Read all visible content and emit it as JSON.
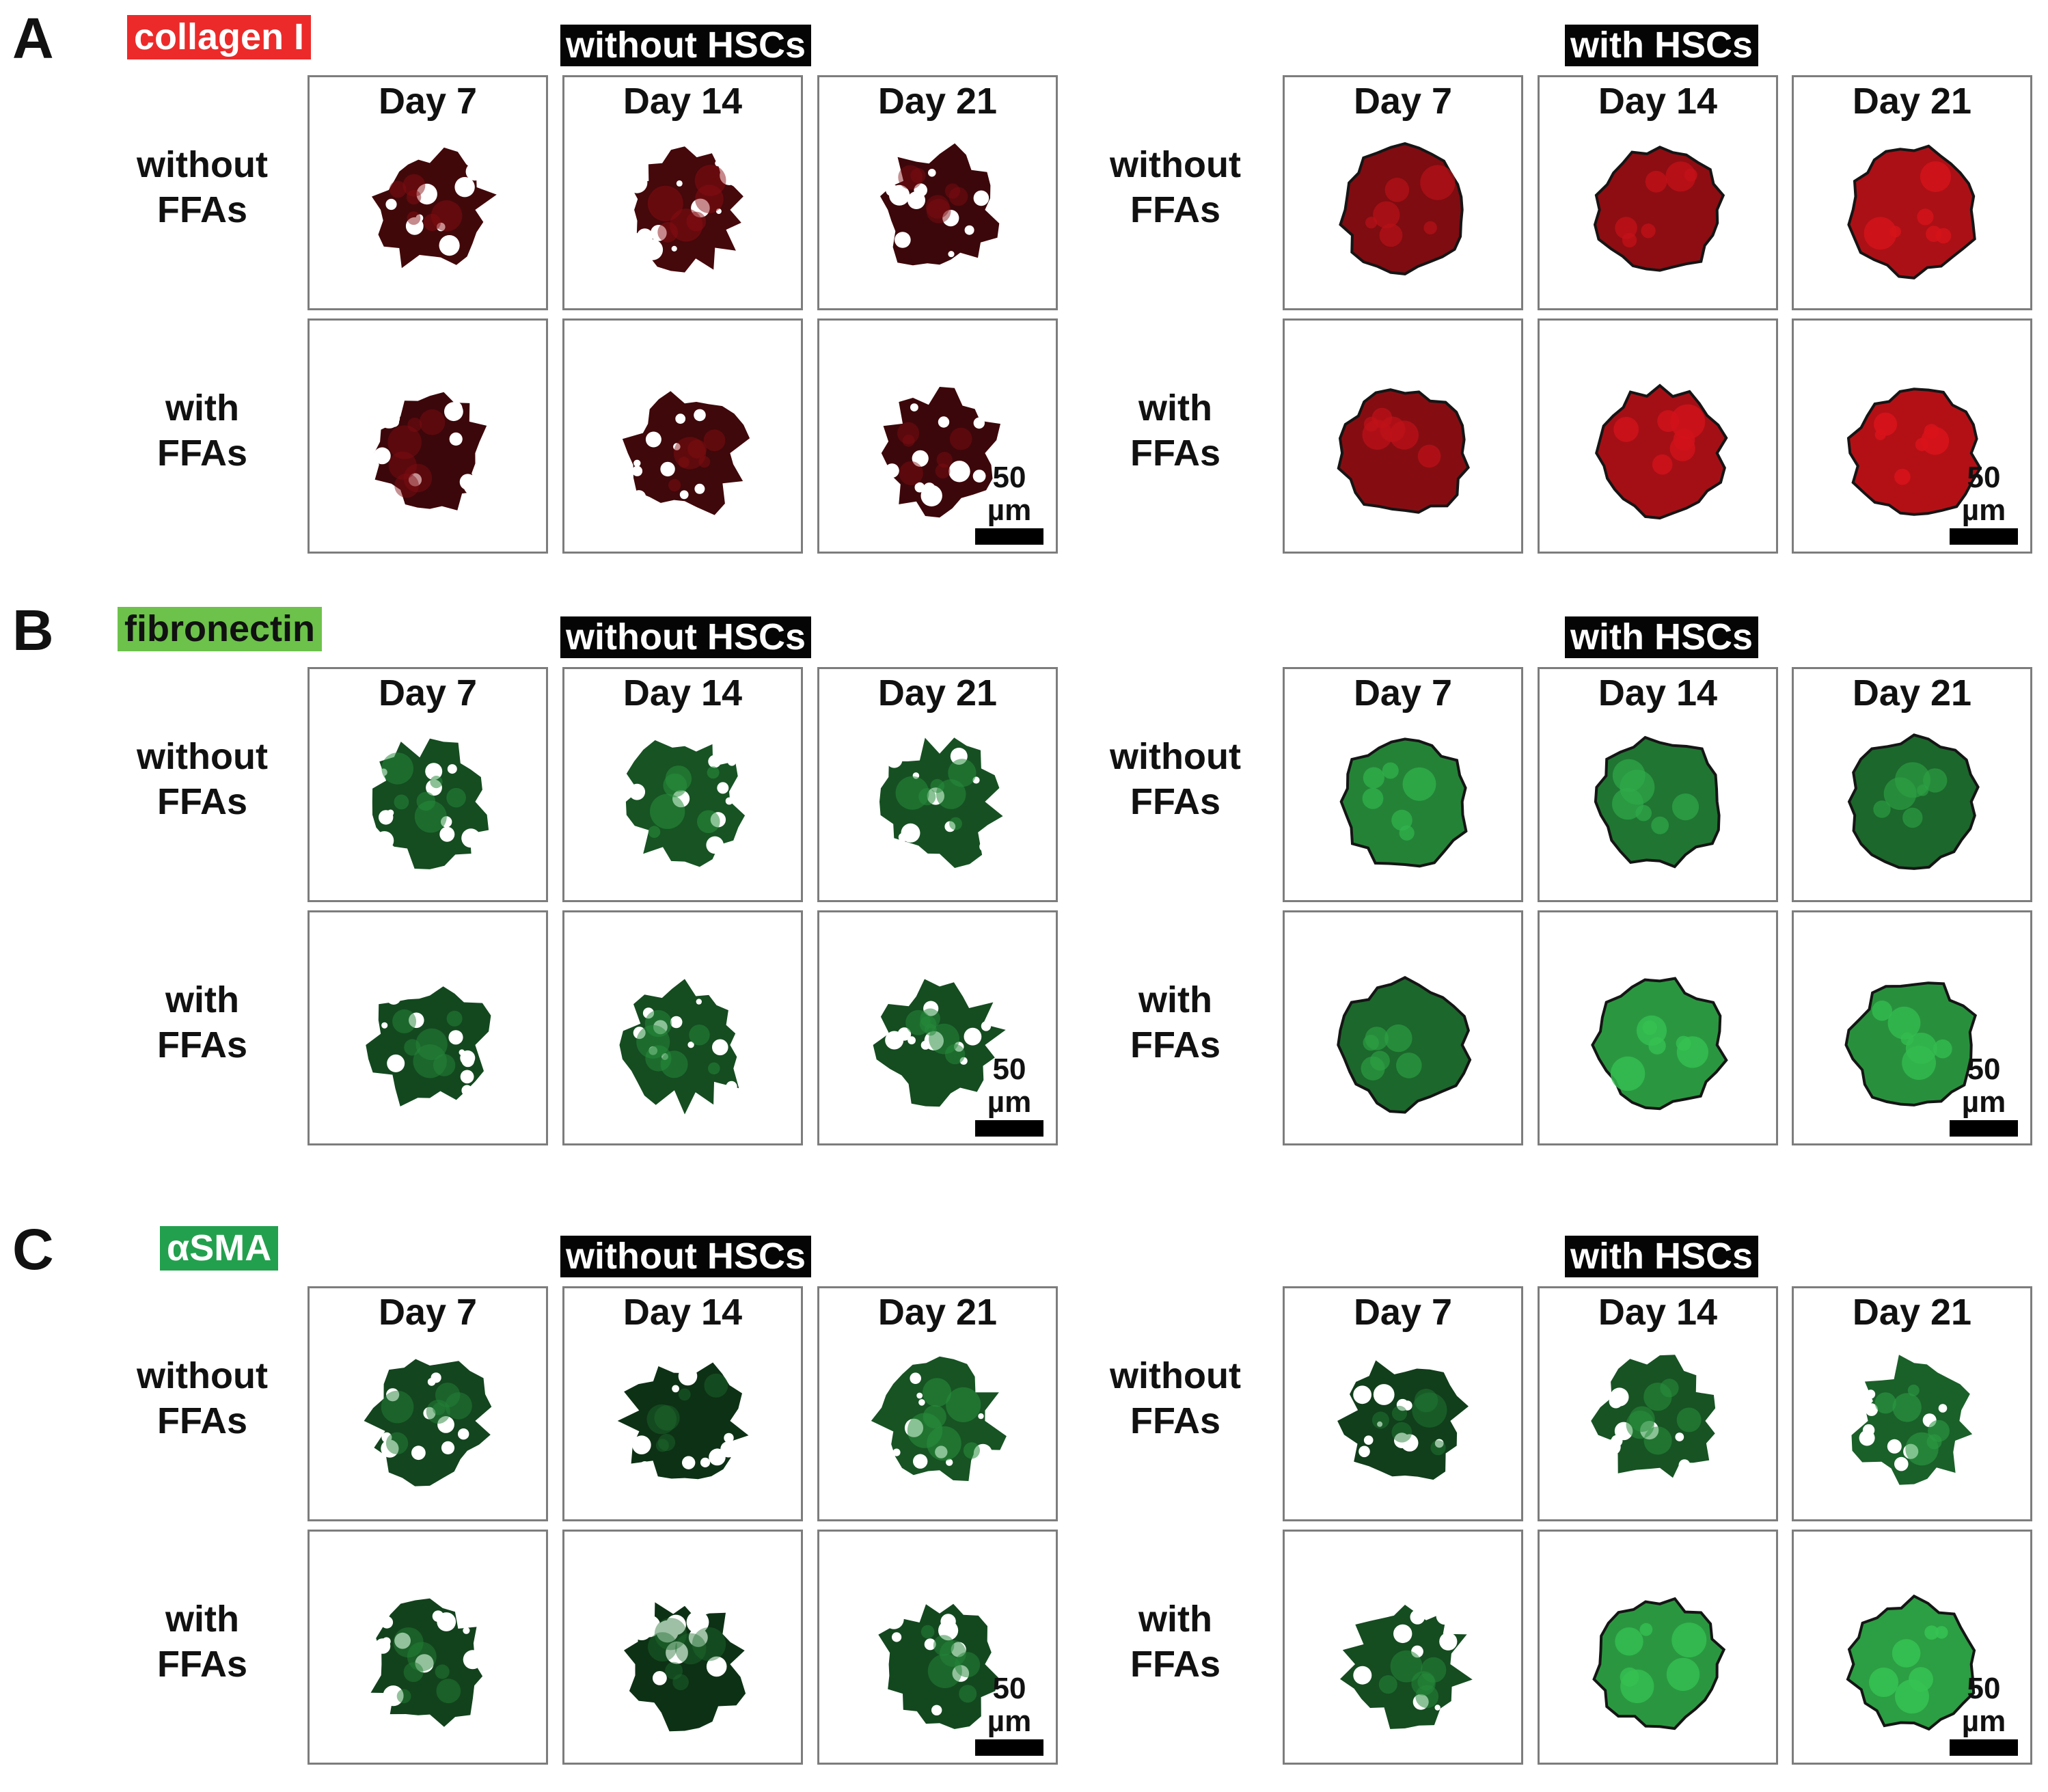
{
  "colors": {
    "collagen_label_bg": "#ec2a2a",
    "fibronectin_label_bg": "#6cc24a",
    "asma_label_bg": "#23a04e",
    "collagen_dark": "#2a0608",
    "collagen_bright": "#e8141c",
    "green_dark": "#0b2a12",
    "green_bright": "#3bd45a",
    "header_bg": "#050505"
  },
  "day_labels": [
    "Day 7",
    "Day 14",
    "Day 21"
  ],
  "row_labels": [
    {
      "line1": "without",
      "line2": "FFAs"
    },
    {
      "line1": "with",
      "line2": "FFAs"
    }
  ],
  "group_headers": [
    "without HSCs",
    "with HSCs"
  ],
  "scale_bar": "50 µm",
  "panels": [
    {
      "letter": "A",
      "stain": "collagen I",
      "stain_color": "#ec2a2a",
      "stain_text_color": "#ffffff",
      "palette": "red",
      "intensity": [
        [
          [
            0.15,
            0.18,
            0.12
          ],
          [
            0.55,
            0.65,
            0.85
          ]
        ],
        [
          [
            0.12,
            0.14,
            0.12
          ],
          [
            0.6,
            0.8,
            0.9
          ]
        ]
      ]
    },
    {
      "letter": "B",
      "stain": "fibronectin",
      "stain_color": "#6cc24a",
      "stain_text_color": "#111111",
      "palette": "green",
      "intensity": [
        [
          [
            0.25,
            0.3,
            0.28
          ],
          [
            0.65,
            0.55,
            0.45
          ]
        ],
        [
          [
            0.22,
            0.25,
            0.25
          ],
          [
            0.45,
            0.8,
            0.75
          ]
        ]
      ]
    },
    {
      "letter": "C",
      "stain": "αSMA",
      "stain_color": "#23a04e",
      "stain_text_color": "#ffffff",
      "palette": "green",
      "intensity": [
        [
          [
            0.2,
            0.05,
            0.3
          ],
          [
            0.15,
            0.3,
            0.4
          ]
        ],
        [
          [
            0.18,
            0.05,
            0.22
          ],
          [
            0.25,
            0.8,
            0.85
          ]
        ]
      ]
    }
  ]
}
